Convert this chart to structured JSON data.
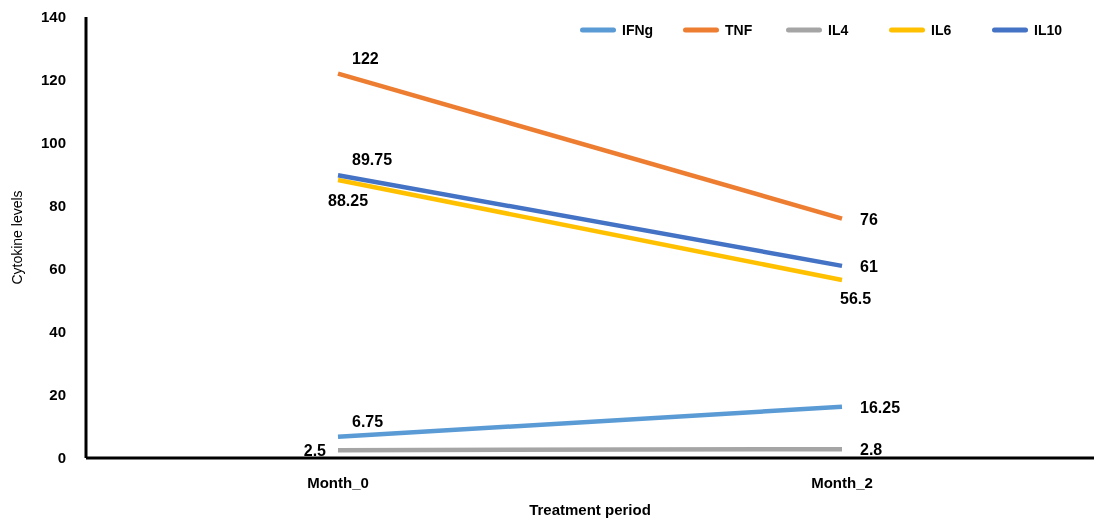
{
  "chart_data": {
    "type": "line",
    "xlabel": "Treatment period",
    "ylabel": "Cytokine levels",
    "categories": [
      "Month_0",
      "Month_2"
    ],
    "series": [
      {
        "name": "IFNg",
        "color": "#5b9bd5",
        "values": [
          6.75,
          16.25
        ]
      },
      {
        "name": "TNF",
        "color": "#ed7d31",
        "values": [
          122,
          76
        ]
      },
      {
        "name": "IL4",
        "color": "#a5a5a5",
        "values": [
          2.5,
          2.8
        ]
      },
      {
        "name": "IL6",
        "color": "#ffc000",
        "values": [
          88.25,
          56.5
        ]
      },
      {
        "name": "IL10",
        "color": "#4472c4",
        "values": [
          89.75,
          61
        ]
      }
    ],
    "ylim": [
      0,
      140
    ],
    "yticks": [
      0,
      20,
      40,
      60,
      80,
      100,
      120,
      140
    ],
    "data_labels": true,
    "legend": "top right",
    "grid": false,
    "marker": "none",
    "line_style": "solid"
  }
}
